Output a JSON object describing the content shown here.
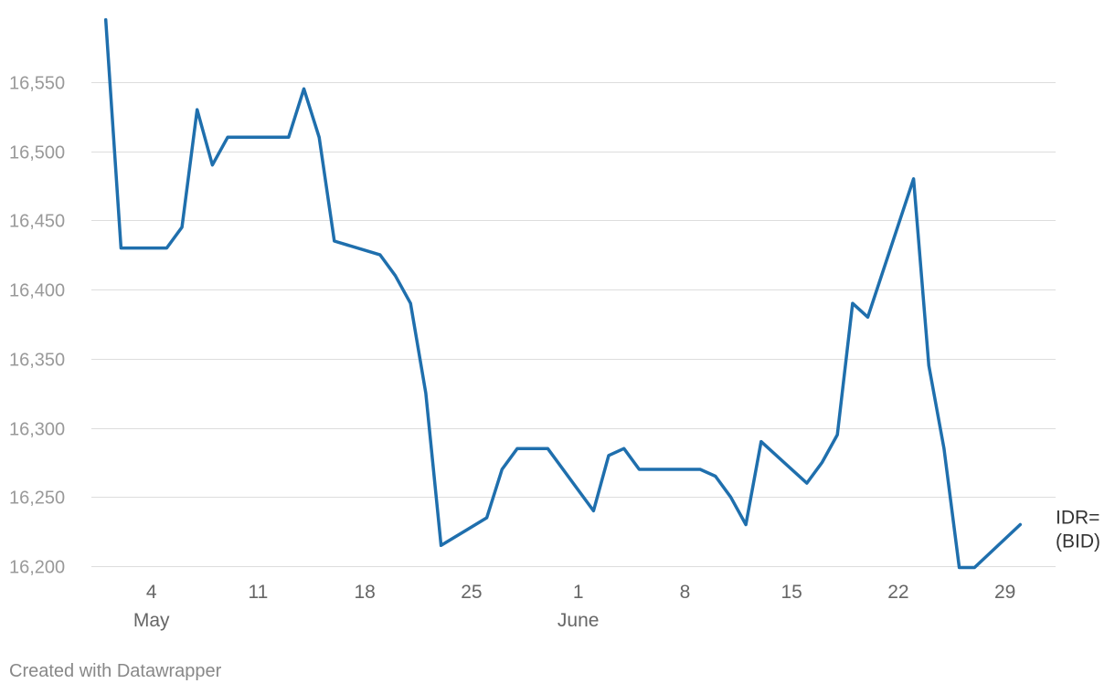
{
  "chart_data": {
    "type": "line",
    "title": "",
    "xlabel": "",
    "ylabel": "",
    "ylim": [
      16200,
      16600
    ],
    "yticks": [
      16200,
      16250,
      16300,
      16350,
      16400,
      16450,
      16500,
      16550
    ],
    "ytick_labels": [
      "16,200",
      "16,250",
      "16,300",
      "16,350",
      "16,400",
      "16,450",
      "16,500",
      "16,550"
    ],
    "xlim": [
      "2023-04-30",
      "2023-07-01"
    ],
    "xticks": [
      {
        "date": "2023-05-04",
        "label": "4",
        "month": "May"
      },
      {
        "date": "2023-05-11",
        "label": "11",
        "month": ""
      },
      {
        "date": "2023-05-18",
        "label": "18",
        "month": ""
      },
      {
        "date": "2023-05-25",
        "label": "25",
        "month": ""
      },
      {
        "date": "2023-06-01",
        "label": "1",
        "month": "June"
      },
      {
        "date": "2023-06-08",
        "label": "8",
        "month": ""
      },
      {
        "date": "2023-06-15",
        "label": "15",
        "month": ""
      },
      {
        "date": "2023-06-22",
        "label": "22",
        "month": ""
      },
      {
        "date": "2023-06-29",
        "label": "29",
        "month": ""
      }
    ],
    "grid": true,
    "series": [
      {
        "label_lines": [
          "IDR=",
          "(BID)"
        ],
        "color": "#1f6fad",
        "points": [
          [
            "2023-05-01",
            16595
          ],
          [
            "2023-05-02",
            16430
          ],
          [
            "2023-05-03",
            16430
          ],
          [
            "2023-05-04",
            16430
          ],
          [
            "2023-05-05",
            16430
          ],
          [
            "2023-05-06",
            16445
          ],
          [
            "2023-05-07",
            16530
          ],
          [
            "2023-05-08",
            16490
          ],
          [
            "2023-05-09",
            16510
          ],
          [
            "2023-05-10",
            16510
          ],
          [
            "2023-05-11",
            16510
          ],
          [
            "2023-05-12",
            16510
          ],
          [
            "2023-05-13",
            16510
          ],
          [
            "2023-05-14",
            16545
          ],
          [
            "2023-05-15",
            16510
          ],
          [
            "2023-05-16",
            16435
          ],
          [
            "2023-05-19",
            16425
          ],
          [
            "2023-05-20",
            16410
          ],
          [
            "2023-05-21",
            16390
          ],
          [
            "2023-05-22",
            16325
          ],
          [
            "2023-05-23",
            16215
          ],
          [
            "2023-05-26",
            16235
          ],
          [
            "2023-05-27",
            16270
          ],
          [
            "2023-05-28",
            16285
          ],
          [
            "2023-05-29",
            16285
          ],
          [
            "2023-05-30",
            16285
          ],
          [
            "2023-06-02",
            16240
          ],
          [
            "2023-06-03",
            16280
          ],
          [
            "2023-06-04",
            16285
          ],
          [
            "2023-06-05",
            16270
          ],
          [
            "2023-06-09",
            16270
          ],
          [
            "2023-06-10",
            16265
          ],
          [
            "2023-06-11",
            16250
          ],
          [
            "2023-06-12",
            16230
          ],
          [
            "2023-06-13",
            16290
          ],
          [
            "2023-06-16",
            16260
          ],
          [
            "2023-06-17",
            16275
          ],
          [
            "2023-06-18",
            16295
          ],
          [
            "2023-06-19",
            16390
          ],
          [
            "2023-06-20",
            16380
          ],
          [
            "2023-06-23",
            16480
          ],
          [
            "2023-06-24",
            16345
          ],
          [
            "2023-06-25",
            16285
          ],
          [
            "2023-06-26",
            16199
          ],
          [
            "2023-06-27",
            16199
          ],
          [
            "2023-06-30",
            16230
          ]
        ]
      }
    ]
  },
  "footer": {
    "credit": "Created with Datawrapper"
  }
}
